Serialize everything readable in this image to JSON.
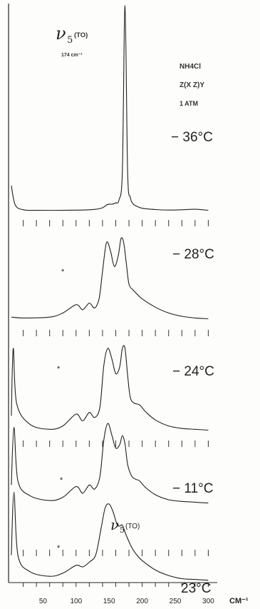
{
  "chart_data": {
    "type": "line",
    "peak_annotation": {
      "symbol": "ν",
      "subscript": "5",
      "mode": "(TO)",
      "value_label": "174 cm⁻¹"
    },
    "lower_peak_annotation": {
      "symbol": "ν",
      "subscript": "5",
      "mode": "(TO)"
    },
    "sample_info": [
      "NH4Cl",
      "Z(X Z)Y",
      "1 ATM"
    ],
    "impurity_marker": "*",
    "x_axis": {
      "unit_label": "CM⁻¹",
      "tick_labels": [
        "50",
        "100",
        "150",
        "200",
        "250",
        "300"
      ],
      "range": [
        0,
        320
      ],
      "minor_tick_step": 20
    },
    "series": [
      {
        "name": "− 36°C",
        "x": [
          2,
          8,
          20,
          40,
          80,
          110,
          130,
          140,
          148,
          155,
          160,
          165,
          170,
          174,
          178,
          182,
          186,
          190,
          200,
          220,
          240,
          260,
          280,
          300
        ],
        "y": [
          1.0,
          0.25,
          0.06,
          0.04,
          0.04,
          0.05,
          0.08,
          0.14,
          0.27,
          0.28,
          0.33,
          0.45,
          1.6,
          8.0,
          1.5,
          0.55,
          0.3,
          0.22,
          0.12,
          0.07,
          0.05,
          0.06,
          0.08,
          0.04
        ]
      },
      {
        "name": "− 28°C",
        "x": [
          2,
          20,
          60,
          80,
          100,
          110,
          120,
          128,
          135,
          140,
          146,
          152,
          158,
          164,
          168,
          172,
          176,
          180,
          186,
          192,
          200,
          220,
          240,
          260,
          280,
          300
        ],
        "y": [
          0.05,
          0.04,
          0.05,
          0.1,
          0.2,
          0.14,
          0.22,
          0.16,
          0.28,
          0.6,
          0.95,
          0.85,
          0.66,
          0.8,
          1.0,
          0.95,
          0.7,
          0.45,
          0.38,
          0.33,
          0.27,
          0.17,
          0.1,
          0.06,
          0.04,
          0.03
        ]
      },
      {
        "name": "− 24°C",
        "x": [
          2,
          5,
          10,
          30,
          60,
          80,
          100,
          110,
          120,
          128,
          136,
          142,
          148,
          154,
          160,
          166,
          170,
          174,
          178,
          182,
          188,
          196,
          205,
          220,
          240,
          260,
          280,
          300
        ],
        "y": [
          0.2,
          1.0,
          0.35,
          0.1,
          0.04,
          0.08,
          0.22,
          0.14,
          0.24,
          0.18,
          0.3,
          0.8,
          1.0,
          0.88,
          0.7,
          0.78,
          1.0,
          1.0,
          0.68,
          0.42,
          0.35,
          0.33,
          0.25,
          0.15,
          0.08,
          0.05,
          0.04,
          0.03
        ]
      },
      {
        "name": "− 11°C",
        "x": [
          2,
          6,
          12,
          30,
          60,
          80,
          100,
          110,
          120,
          128,
          136,
          142,
          148,
          154,
          160,
          166,
          170,
          174,
          178,
          184,
          190,
          196,
          205,
          220,
          240,
          260,
          280,
          300
        ],
        "y": [
          0.25,
          0.95,
          0.3,
          0.12,
          0.06,
          0.1,
          0.23,
          0.15,
          0.25,
          0.2,
          0.35,
          0.8,
          1.0,
          0.86,
          0.7,
          0.74,
          0.85,
          0.75,
          0.5,
          0.36,
          0.32,
          0.3,
          0.22,
          0.13,
          0.07,
          0.05,
          0.04,
          0.03
        ]
      },
      {
        "name": "23°C",
        "x": [
          2,
          6,
          12,
          30,
          60,
          80,
          100,
          110,
          120,
          130,
          138,
          144,
          150,
          156,
          162,
          166,
          170,
          176,
          184,
          192,
          200,
          220,
          240,
          260,
          280,
          300
        ],
        "y": [
          0.35,
          1.15,
          0.35,
          0.14,
          0.08,
          0.12,
          0.22,
          0.2,
          0.26,
          0.36,
          0.7,
          0.95,
          1.0,
          0.9,
          0.74,
          0.72,
          0.73,
          0.6,
          0.45,
          0.35,
          0.28,
          0.16,
          0.09,
          0.05,
          0.04,
          0.03
        ]
      }
    ]
  }
}
